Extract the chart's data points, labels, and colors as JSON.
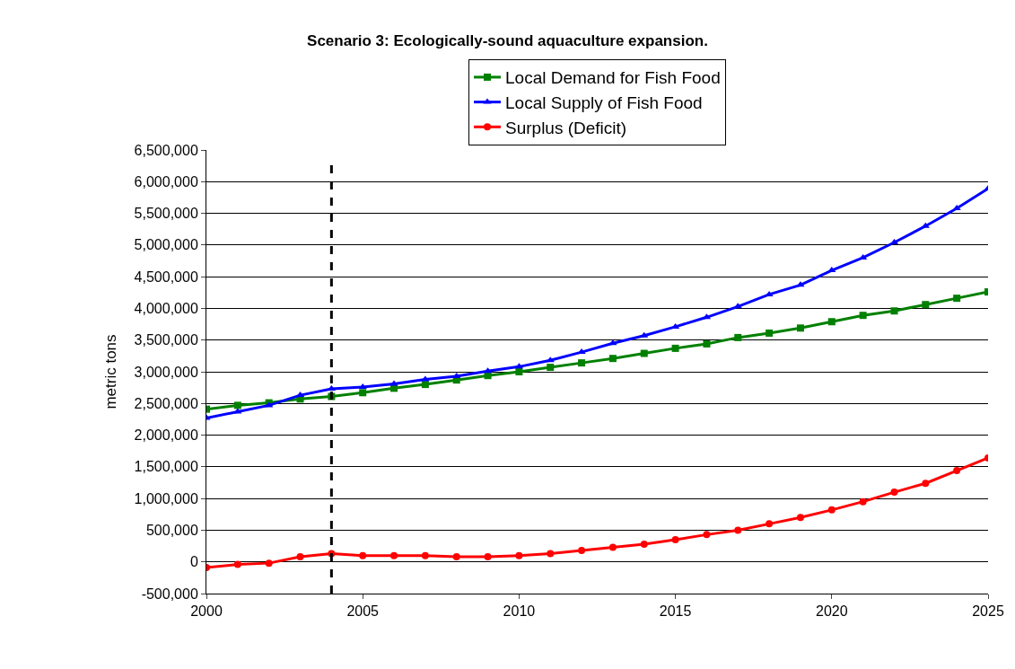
{
  "chart_data": {
    "type": "line",
    "title": "Scenario 3: Ecologically-sound aquaculture expansion.",
    "ylabel": "metric tons",
    "x": [
      2000,
      2001,
      2002,
      2003,
      2004,
      2005,
      2006,
      2007,
      2008,
      2009,
      2010,
      2011,
      2012,
      2013,
      2014,
      2015,
      2016,
      2017,
      2018,
      2019,
      2020,
      2021,
      2022,
      2023,
      2024,
      2025
    ],
    "series": [
      {
        "name": "Local Demand for Fish Food",
        "color": "#008000",
        "marker": "square",
        "values": [
          2410000,
          2470000,
          2510000,
          2570000,
          2610000,
          2670000,
          2740000,
          2800000,
          2870000,
          2940000,
          3000000,
          3070000,
          3140000,
          3210000,
          3290000,
          3370000,
          3440000,
          3540000,
          3610000,
          3690000,
          3790000,
          3890000,
          3960000,
          4060000,
          4160000,
          4260000
        ]
      },
      {
        "name": "Local Supply of Fish Food",
        "color": "#0000ff",
        "marker": "triangle",
        "values": [
          2270000,
          2370000,
          2470000,
          2630000,
          2730000,
          2760000,
          2810000,
          2880000,
          2930000,
          3010000,
          3080000,
          3180000,
          3310000,
          3450000,
          3570000,
          3710000,
          3860000,
          4030000,
          4220000,
          4370000,
          4600000,
          4800000,
          5040000,
          5300000,
          5580000,
          5890000
        ]
      },
      {
        "name": "Surplus (Deficit)",
        "color": "#ff0000",
        "marker": "circle",
        "values": [
          -90000,
          -40000,
          -20000,
          80000,
          130000,
          100000,
          100000,
          100000,
          80000,
          80000,
          100000,
          130000,
          180000,
          230000,
          280000,
          350000,
          430000,
          500000,
          600000,
          700000,
          820000,
          950000,
          1100000,
          1240000,
          1440000,
          1640000
        ]
      }
    ],
    "xlim": [
      2000,
      2025
    ],
    "xticks": [
      2000,
      2005,
      2010,
      2015,
      2020,
      2025
    ],
    "ylim": [
      -500000,
      6500000
    ],
    "yticks": [
      {
        "value": -500000,
        "label": "-500,000"
      },
      {
        "value": 0,
        "label": "0"
      },
      {
        "value": 500000,
        "label": "500,000"
      },
      {
        "value": 1000000,
        "label": "1,000,000"
      },
      {
        "value": 1500000,
        "label": "1,500,000"
      },
      {
        "value": 2000000,
        "label": "2,000,000"
      },
      {
        "value": 2500000,
        "label": "2,500,000"
      },
      {
        "value": 3000000,
        "label": "3,000,000"
      },
      {
        "value": 3500000,
        "label": "3,500,000"
      },
      {
        "value": 4000000,
        "label": "4,000,000"
      },
      {
        "value": 4500000,
        "label": "4,500,000"
      },
      {
        "value": 5000000,
        "label": "5,000,000"
      },
      {
        "value": 5500000,
        "label": "5,500,000"
      },
      {
        "value": 6000000,
        "label": "6,000,000"
      },
      {
        "value": 6500000,
        "label": "6,500,000"
      }
    ],
    "ref_lines": [
      {
        "axis": "x",
        "value": 2004,
        "color": "#000000",
        "line_style": "dashed"
      }
    ],
    "grid": "y",
    "legend": "top",
    "line_style": "solid"
  }
}
